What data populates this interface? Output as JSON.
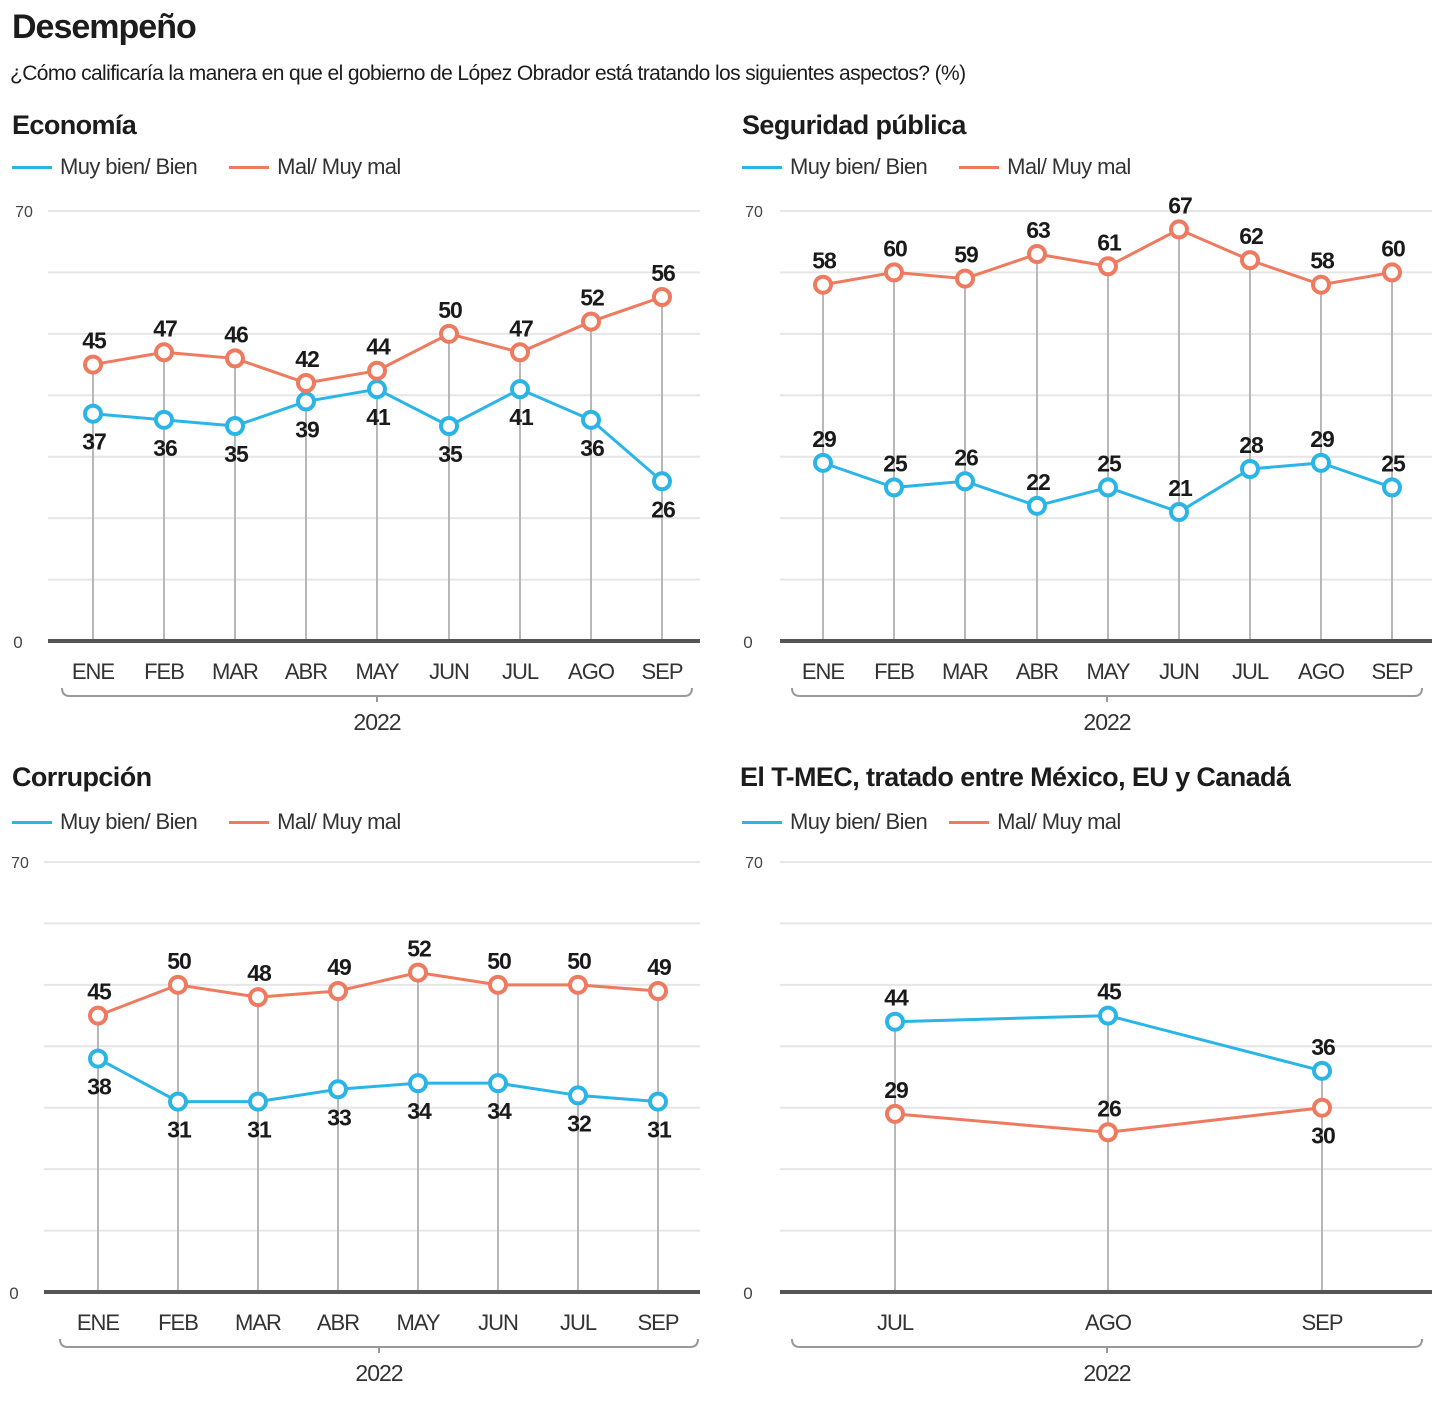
{
  "header": {
    "title": "Desempeño",
    "subtitle": "¿Cómo calificaría la manera en que el gobierno de López Obrador está tratando los siguientes aspectos? (%)"
  },
  "colors": {
    "good": "#2bb5e6",
    "bad": "#ee7a5f",
    "grid": "#e6e6e6",
    "drop": "#b8b8b8",
    "axis": "#555555"
  },
  "chart_data": [
    {
      "type": "line",
      "title": "Economía",
      "categories": [
        "ENE",
        "FEB",
        "MAR",
        "ABR",
        "MAY",
        "JUN",
        "JUL",
        "AGO",
        "SEP"
      ],
      "group_label": "2022",
      "ylim": [
        0,
        70
      ],
      "ytick_labels": [
        "0",
        "70"
      ],
      "grid": true,
      "legend": "top-left",
      "series": [
        {
          "name": "Muy bien/ Bien",
          "key": "good",
          "values": [
            37,
            36,
            35,
            39,
            41,
            35,
            41,
            36,
            26
          ]
        },
        {
          "name": "Mal/ Muy mal",
          "key": "bad",
          "values": [
            45,
            47,
            46,
            42,
            44,
            50,
            47,
            52,
            56
          ]
        }
      ],
      "label_pos": {
        "good": [
          "below",
          "below",
          "below",
          "below",
          "below",
          "below",
          "below",
          "below",
          "below"
        ],
        "bad": [
          "above",
          "above",
          "above",
          "above",
          "above",
          "above",
          "above",
          "above",
          "above"
        ]
      }
    },
    {
      "type": "line",
      "title": "Seguridad pública",
      "categories": [
        "ENE",
        "FEB",
        "MAR",
        "ABR",
        "MAY",
        "JUN",
        "JUL",
        "AGO",
        "SEP"
      ],
      "group_label": "2022",
      "ylim": [
        0,
        70
      ],
      "ytick_labels": [
        "0",
        "70"
      ],
      "grid": true,
      "legend": "top-left",
      "series": [
        {
          "name": "Muy bien/ Bien",
          "key": "good",
          "values": [
            29,
            25,
            26,
            22,
            25,
            21,
            28,
            29,
            25
          ]
        },
        {
          "name": "Mal/ Muy mal",
          "key": "bad",
          "values": [
            58,
            60,
            59,
            63,
            61,
            67,
            62,
            58,
            60
          ]
        }
      ],
      "label_pos": {
        "good": [
          "above",
          "above",
          "above",
          "above",
          "above",
          "above",
          "above",
          "above",
          "above"
        ],
        "bad": [
          "above",
          "above",
          "above",
          "above",
          "above",
          "above",
          "above",
          "above",
          "above"
        ]
      }
    },
    {
      "type": "line",
      "title": "Corrupción",
      "categories": [
        "ENE",
        "FEB",
        "MAR",
        "ABR",
        "MAY",
        "JUN",
        "JUL",
        "SEP"
      ],
      "group_label": "2022",
      "ylim": [
        0,
        70
      ],
      "ytick_labels": [
        "0",
        "70"
      ],
      "grid": true,
      "legend": "top-left",
      "series": [
        {
          "name": "Muy bien/ Bien",
          "key": "good",
          "values": [
            38,
            31,
            31,
            33,
            34,
            34,
            32,
            31
          ]
        },
        {
          "name": "Mal/ Muy mal",
          "key": "bad",
          "values": [
            45,
            50,
            48,
            49,
            52,
            50,
            50,
            49
          ]
        }
      ],
      "label_pos": {
        "good": [
          "below",
          "below",
          "below",
          "below",
          "below",
          "below",
          "below",
          "below"
        ],
        "bad": [
          "above",
          "above",
          "above",
          "above",
          "above",
          "above",
          "above",
          "above"
        ]
      }
    },
    {
      "type": "line",
      "title": "El T-MEC, tratado entre México, EU y Canadá",
      "categories": [
        "JUL",
        "AGO",
        "SEP"
      ],
      "group_label": "2022",
      "ylim": [
        0,
        70
      ],
      "ytick_labels": [
        "0",
        "70"
      ],
      "grid": true,
      "legend": "top-left",
      "series": [
        {
          "name": "Muy bien/ Bien",
          "key": "good",
          "values": [
            44,
            45,
            36
          ]
        },
        {
          "name": "Mal/ Muy mal",
          "key": "bad",
          "values": [
            29,
            26,
            30
          ]
        }
      ],
      "label_pos": {
        "good": [
          "above",
          "above",
          "above"
        ],
        "bad": [
          "above",
          "above",
          "below"
        ]
      }
    }
  ]
}
